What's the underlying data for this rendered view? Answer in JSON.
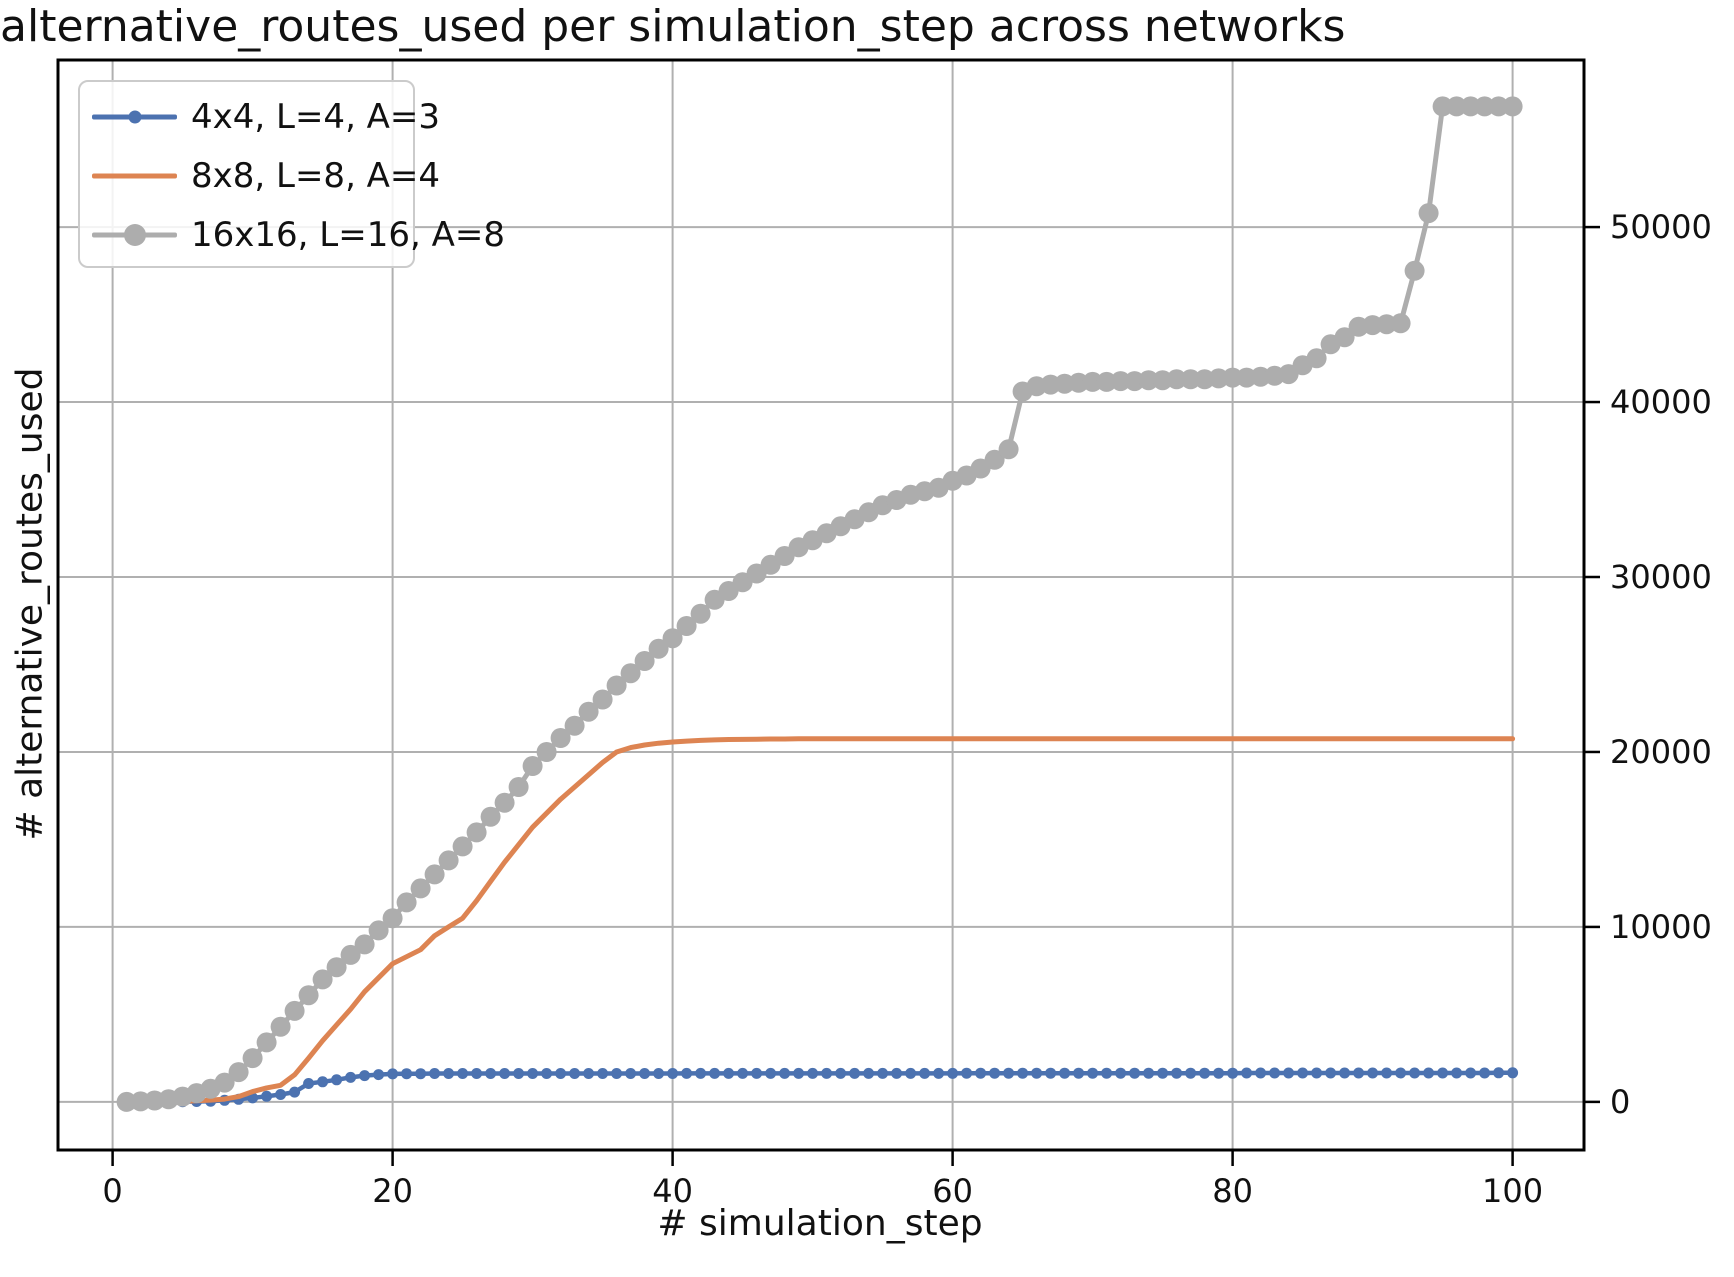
{
  "title": "alternative_routes_used per simulation_step across networks",
  "axes": {
    "x": {
      "label": "# simulation_step",
      "ticks": [
        0,
        20,
        40,
        60,
        80,
        100
      ],
      "range": [
        -3.9,
        105.1
      ]
    },
    "y": {
      "label": "# alternative_routes_used",
      "ticks": [
        0,
        10000,
        20000,
        30000,
        40000,
        50000
      ],
      "range": [
        -2750,
        59550
      ],
      "tick_side": "right"
    }
  },
  "style": {
    "grid_color": "#b0b0b0",
    "spine_color": "#000000",
    "tick_label_color": "#111111",
    "blue": "#4C72B0",
    "orange": "#DD8452",
    "gray": "#ADADAD"
  },
  "legend": {
    "items": [
      {
        "label": "4x4, L=4, A=3",
        "color": "#4C72B0",
        "marker": "small"
      },
      {
        "label": "8x8, L=8, A=4",
        "color": "#DD8452",
        "marker": "none"
      },
      {
        "label": "16x16, L=16, A=8",
        "color": "#ADADAD",
        "marker": "large"
      }
    ]
  },
  "chart_data": {
    "type": "line",
    "title": "alternative_routes_used per simulation_step across networks",
    "xlabel": "# simulation_step",
    "ylabel": "# alternative_routes_used",
    "grid": true,
    "legend_position": "upper left",
    "xlim": [
      -3.9,
      105.1
    ],
    "ylim": [
      -2750,
      59550
    ],
    "x": [
      1,
      2,
      3,
      4,
      5,
      6,
      7,
      8,
      9,
      10,
      11,
      12,
      13,
      14,
      15,
      16,
      17,
      18,
      19,
      20,
      21,
      22,
      23,
      24,
      25,
      26,
      27,
      28,
      29,
      30,
      31,
      32,
      33,
      34,
      35,
      36,
      37,
      38,
      39,
      40,
      41,
      42,
      43,
      44,
      45,
      46,
      47,
      48,
      49,
      50,
      51,
      52,
      53,
      54,
      55,
      56,
      57,
      58,
      59,
      60,
      61,
      62,
      63,
      64,
      65,
      66,
      67,
      68,
      69,
      70,
      71,
      72,
      73,
      74,
      75,
      76,
      77,
      78,
      79,
      80,
      81,
      82,
      83,
      84,
      85,
      86,
      87,
      88,
      89,
      90,
      91,
      92,
      93,
      94,
      95,
      96,
      97,
      98,
      99,
      100
    ],
    "series": [
      {
        "name": "4x4, L=4, A=3",
        "color": "#4C72B0",
        "line_width": 4.5,
        "marker_radius": 5.5,
        "values": [
          0,
          0,
          0,
          0,
          10,
          20,
          40,
          90,
          150,
          230,
          320,
          420,
          560,
          1050,
          1150,
          1260,
          1400,
          1500,
          1560,
          1600,
          1610,
          1610,
          1620,
          1620,
          1620,
          1620,
          1620,
          1620,
          1620,
          1620,
          1620,
          1620,
          1620,
          1620,
          1620,
          1620,
          1620,
          1620,
          1620,
          1620,
          1630,
          1630,
          1630,
          1630,
          1630,
          1630,
          1630,
          1630,
          1630,
          1630,
          1630,
          1630,
          1630,
          1630,
          1630,
          1630,
          1630,
          1630,
          1630,
          1630,
          1640,
          1640,
          1640,
          1640,
          1640,
          1640,
          1640,
          1640,
          1640,
          1640,
          1640,
          1640,
          1640,
          1640,
          1640,
          1640,
          1640,
          1640,
          1640,
          1640,
          1650,
          1650,
          1650,
          1650,
          1650,
          1650,
          1650,
          1650,
          1650,
          1650,
          1650,
          1650,
          1650,
          1650,
          1650,
          1650,
          1650,
          1650,
          1660,
          1660
        ]
      },
      {
        "name": "8x8, L=8, A=4",
        "color": "#DD8452",
        "line_width": 5,
        "marker_radius": 0,
        "values": [
          0,
          0,
          0,
          10,
          30,
          60,
          100,
          160,
          300,
          590,
          800,
          950,
          1550,
          2500,
          3500,
          4400,
          5300,
          6300,
          7100,
          7900,
          8300,
          8700,
          9500,
          10000,
          10500,
          11500,
          12600,
          13700,
          14700,
          15700,
          16500,
          17300,
          18000,
          18700,
          19400,
          20000,
          20250,
          20400,
          20500,
          20570,
          20620,
          20660,
          20690,
          20710,
          20720,
          20730,
          20740,
          20740,
          20750,
          20750,
          20750,
          20750,
          20750,
          20750,
          20750,
          20750,
          20750,
          20750,
          20750,
          20750,
          20750,
          20750,
          20750,
          20750,
          20750,
          20750,
          20750,
          20750,
          20750,
          20750,
          20750,
          20750,
          20750,
          20750,
          20750,
          20750,
          20750,
          20750,
          20750,
          20750,
          20750,
          20750,
          20750,
          20750,
          20750,
          20750,
          20750,
          20750,
          20750,
          20750,
          20750,
          20750,
          20750,
          20750,
          20750,
          20750,
          20750,
          20750,
          20750,
          20750
        ]
      },
      {
        "name": "16x16, L=16, A=8",
        "color": "#ADADAD",
        "line_width": 5,
        "marker_radius": 10,
        "values": [
          0,
          30,
          80,
          150,
          300,
          500,
          750,
          1100,
          1700,
          2500,
          3400,
          4300,
          5200,
          6100,
          7000,
          7700,
          8400,
          9000,
          9800,
          10500,
          11400,
          12200,
          13000,
          13800,
          14600,
          15400,
          16300,
          17100,
          18000,
          19200,
          20000,
          20800,
          21500,
          22300,
          23000,
          23800,
          24500,
          25200,
          25900,
          26500,
          27200,
          27900,
          28700,
          29200,
          29700,
          30200,
          30700,
          31200,
          31700,
          32100,
          32500,
          32900,
          33300,
          33700,
          34100,
          34400,
          34700,
          34900,
          35100,
          35500,
          35800,
          36200,
          36700,
          37300,
          40600,
          40900,
          41000,
          41050,
          41100,
          41150,
          41150,
          41200,
          41200,
          41250,
          41250,
          41300,
          41300,
          41300,
          41350,
          41400,
          41400,
          41450,
          41500,
          41600,
          42100,
          42500,
          43300,
          43700,
          44300,
          44400,
          44450,
          44500,
          47500,
          50800,
          56900,
          56900,
          56900,
          56900,
          56900,
          56900
        ]
      }
    ]
  }
}
